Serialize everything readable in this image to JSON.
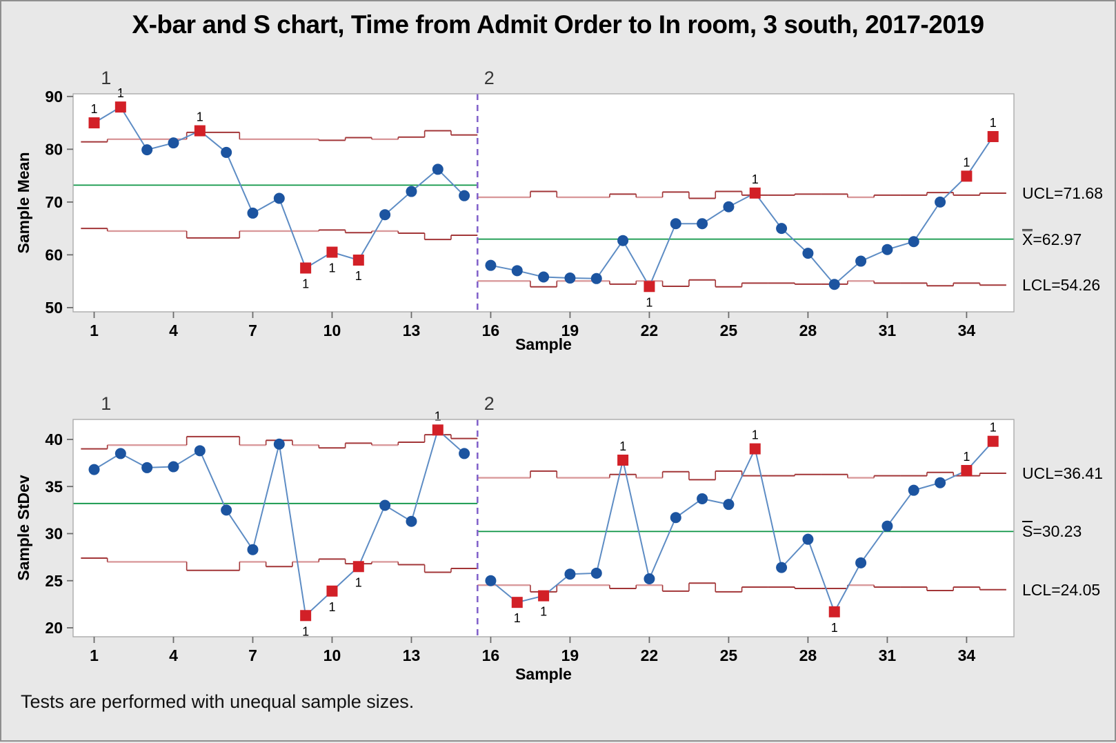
{
  "title": "X-bar and S chart, Time from Admit Order to In room, 3 south, 2017-2019",
  "footer_note": "Tests are performed with unequal sample sizes.",
  "colors": {
    "background": "#e8e8e8",
    "plot_background": "#ffffff",
    "series_line": "#5d8cc4",
    "point_marker": "#1c54a0",
    "out_of_control_marker": "#d22027",
    "limit_line_dark": "#a23537",
    "limit_line_light": "#d9999b",
    "center_line": "#0b9444",
    "stage_divider": "#8363cb",
    "tick": "#6b6b6b",
    "frame": "#ababab"
  },
  "chart_data": {
    "type": "line",
    "subtype": "xbar-s-control-chart",
    "title": "X-bar and S chart, Time from Admit Order to In room, 3 south, 2017-2019",
    "footer_note": "Tests are performed with unequal sample sizes.",
    "x_axis": {
      "label": "Sample",
      "ticks": [
        1,
        4,
        7,
        10,
        13,
        16,
        19,
        22,
        25,
        28,
        31,
        34
      ],
      "range": [
        1,
        35
      ]
    },
    "stage_labels": [
      "1",
      "2"
    ],
    "stage_divider_after_sample": 15,
    "charts": [
      {
        "name": "sample-mean",
        "y_label": "Sample Mean",
        "y_ticks": [
          90,
          80,
          70,
          60,
          50
        ],
        "ylim": [
          49.2,
          90.5
        ],
        "values": [
          85,
          88,
          79.9,
          81.2,
          83.5,
          79.4,
          67.9,
          70.7,
          57.5,
          60.5,
          59,
          67.6,
          72,
          76.2,
          71.2,
          58,
          57,
          55.8,
          55.6,
          55.5,
          62.7,
          54,
          65.9,
          65.9,
          69.1,
          71.7,
          65,
          60.3,
          54.4,
          58.8,
          61,
          62.5,
          70,
          74.9,
          82.4
        ],
        "stage_centers": [
          73.2,
          62.97
        ],
        "ucl_steps": [
          81.4,
          81.9,
          81.9,
          81.9,
          83.2,
          83.2,
          81.9,
          81.9,
          81.9,
          81.7,
          82.2,
          81.9,
          82.3,
          83.5,
          82.7,
          70.9,
          70.9,
          72,
          70.9,
          70.9,
          71.5,
          70.9,
          71.9,
          70.7,
          72,
          71.3,
          71.3,
          71.5,
          71.5,
          70.9,
          71.3,
          71.3,
          71.8,
          71.3,
          71.68
        ],
        "lcl_steps": [
          65,
          64.5,
          64.5,
          64.5,
          63.2,
          63.2,
          64.5,
          64.5,
          64.5,
          64.7,
          64.2,
          64.5,
          64.1,
          62.9,
          63.7,
          55.04,
          55.04,
          53.94,
          55.04,
          55.04,
          54.44,
          55.04,
          54.04,
          55.24,
          53.94,
          54.64,
          54.64,
          54.44,
          54.44,
          55.04,
          54.64,
          54.64,
          54.14,
          54.64,
          54.26
        ],
        "test_flag_label": "1",
        "out_of_control": [
          {
            "sample": 1,
            "side": "above"
          },
          {
            "sample": 2,
            "side": "above"
          },
          {
            "sample": 5,
            "side": "above"
          },
          {
            "sample": 9,
            "side": "below"
          },
          {
            "sample": 10,
            "side": "below"
          },
          {
            "sample": 11,
            "side": "below"
          },
          {
            "sample": 22,
            "side": "below"
          },
          {
            "sample": 26,
            "side": "above"
          },
          {
            "sample": 34,
            "side": "above"
          },
          {
            "sample": 35,
            "side": "above"
          }
        ],
        "right_labels": {
          "ucl": "UCL=71.68",
          "center_base": "X",
          "center_rest": "=62.97",
          "lcl": "LCL=54.26"
        },
        "right_label_values": {
          "ucl": 71.68,
          "center": 62.97,
          "lcl": 54.26
        }
      },
      {
        "name": "sample-stdev",
        "y_label": "Sample StDev",
        "y_ticks": [
          40,
          35,
          30,
          25,
          20
        ],
        "ylim": [
          19.05,
          42.12
        ],
        "values": [
          36.8,
          38.5,
          37,
          37.1,
          38.8,
          32.5,
          28.3,
          39.5,
          21.3,
          23.9,
          26.5,
          33,
          31.3,
          41,
          38.5,
          25,
          22.7,
          23.4,
          25.7,
          25.8,
          37.8,
          25.2,
          31.7,
          33.7,
          33.1,
          39,
          26.4,
          29.4,
          21.7,
          26.9,
          30.8,
          34.6,
          35.4,
          36.7,
          39.8
        ],
        "stage_centers": [
          33.2,
          30.23
        ],
        "ucl_steps": [
          39,
          39.4,
          39.4,
          39.4,
          40.3,
          40.3,
          39.4,
          39.9,
          39.4,
          39.1,
          39.6,
          39.4,
          39.7,
          40.5,
          40.1,
          35.93,
          35.93,
          36.64,
          35.93,
          35.93,
          36.28,
          35.93,
          36.57,
          35.72,
          36.64,
          36.14,
          36.14,
          36.28,
          36.28,
          35.93,
          36.14,
          36.14,
          36.5,
          36.14,
          36.41
        ],
        "lcl_steps": [
          27.4,
          27,
          27,
          27,
          26.1,
          26.1,
          27,
          26.5,
          27,
          27.3,
          26.8,
          27,
          26.7,
          25.9,
          26.3,
          24.53,
          24.53,
          23.82,
          24.53,
          24.53,
          24.18,
          24.53,
          23.89,
          24.74,
          23.82,
          24.32,
          24.32,
          24.18,
          24.18,
          24.53,
          24.32,
          24.32,
          23.96,
          24.32,
          24.05
        ],
        "test_flag_label": "1",
        "out_of_control": [
          {
            "sample": 9,
            "side": "below"
          },
          {
            "sample": 10,
            "side": "below"
          },
          {
            "sample": 11,
            "side": "below"
          },
          {
            "sample": 14,
            "side": "above"
          },
          {
            "sample": 17,
            "side": "below"
          },
          {
            "sample": 18,
            "side": "below"
          },
          {
            "sample": 21,
            "side": "above"
          },
          {
            "sample": 26,
            "side": "above"
          },
          {
            "sample": 29,
            "side": "below"
          },
          {
            "sample": 34,
            "side": "above"
          },
          {
            "sample": 35,
            "side": "above"
          }
        ],
        "right_labels": {
          "ucl": "UCL=36.41",
          "center_base": "S",
          "center_rest": "=30.23",
          "lcl": "LCL=24.05"
        },
        "right_label_values": {
          "ucl": 36.41,
          "center": 30.23,
          "lcl": 24.05
        }
      }
    ]
  }
}
